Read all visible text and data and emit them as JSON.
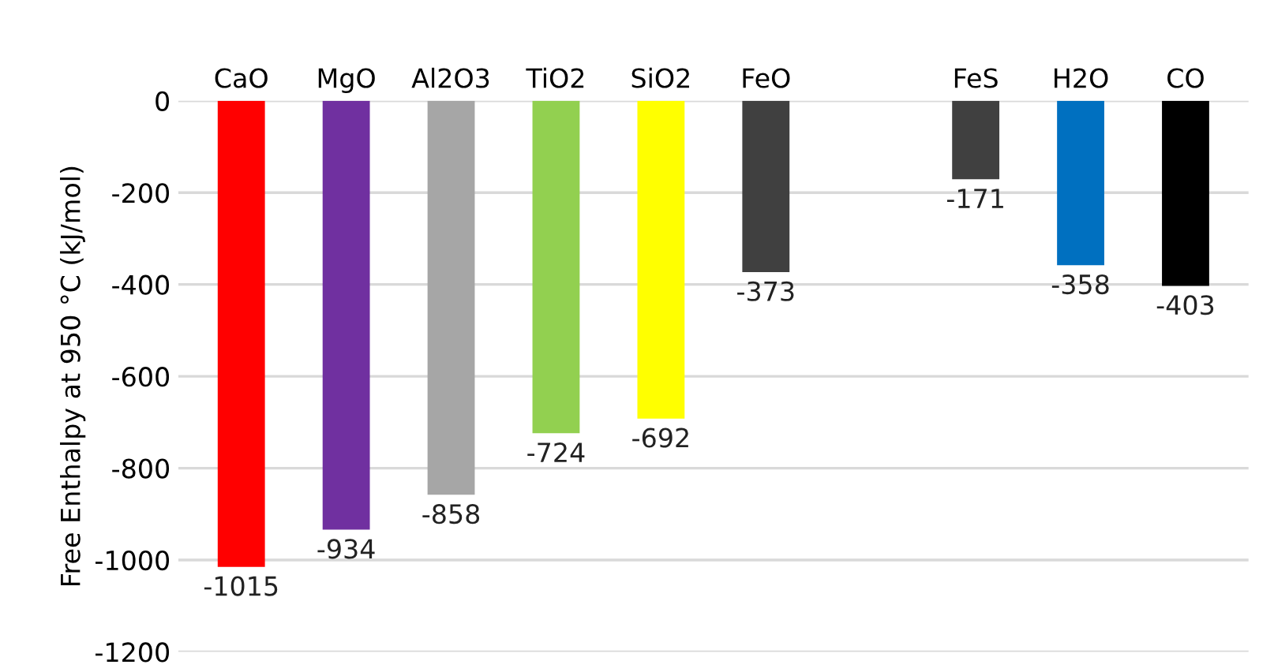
{
  "chart_data": {
    "type": "bar",
    "ylabel": "Free Enthalpy at 950 °C (kJ/mol)",
    "categories": [
      "CaO",
      "MgO",
      "Al2O3",
      "TiO2",
      "SiO2",
      "FeO",
      null,
      "FeS",
      "H2O",
      "CO"
    ],
    "values": [
      -1015,
      -934,
      -858,
      -724,
      -692,
      -373,
      null,
      -171,
      -358,
      -403
    ],
    "colors": [
      "#ff0000",
      "#7030a0",
      "#a6a6a6",
      "#92d050",
      "#ffff00",
      "#404040",
      "#404040",
      "#404040",
      "#0070c0",
      "#000000"
    ],
    "ylim": [
      -1200,
      0
    ],
    "yticks": [
      0,
      -200,
      -400,
      -600,
      -800,
      -1000,
      -1200
    ],
    "grid": "y",
    "data_labels": true
  }
}
